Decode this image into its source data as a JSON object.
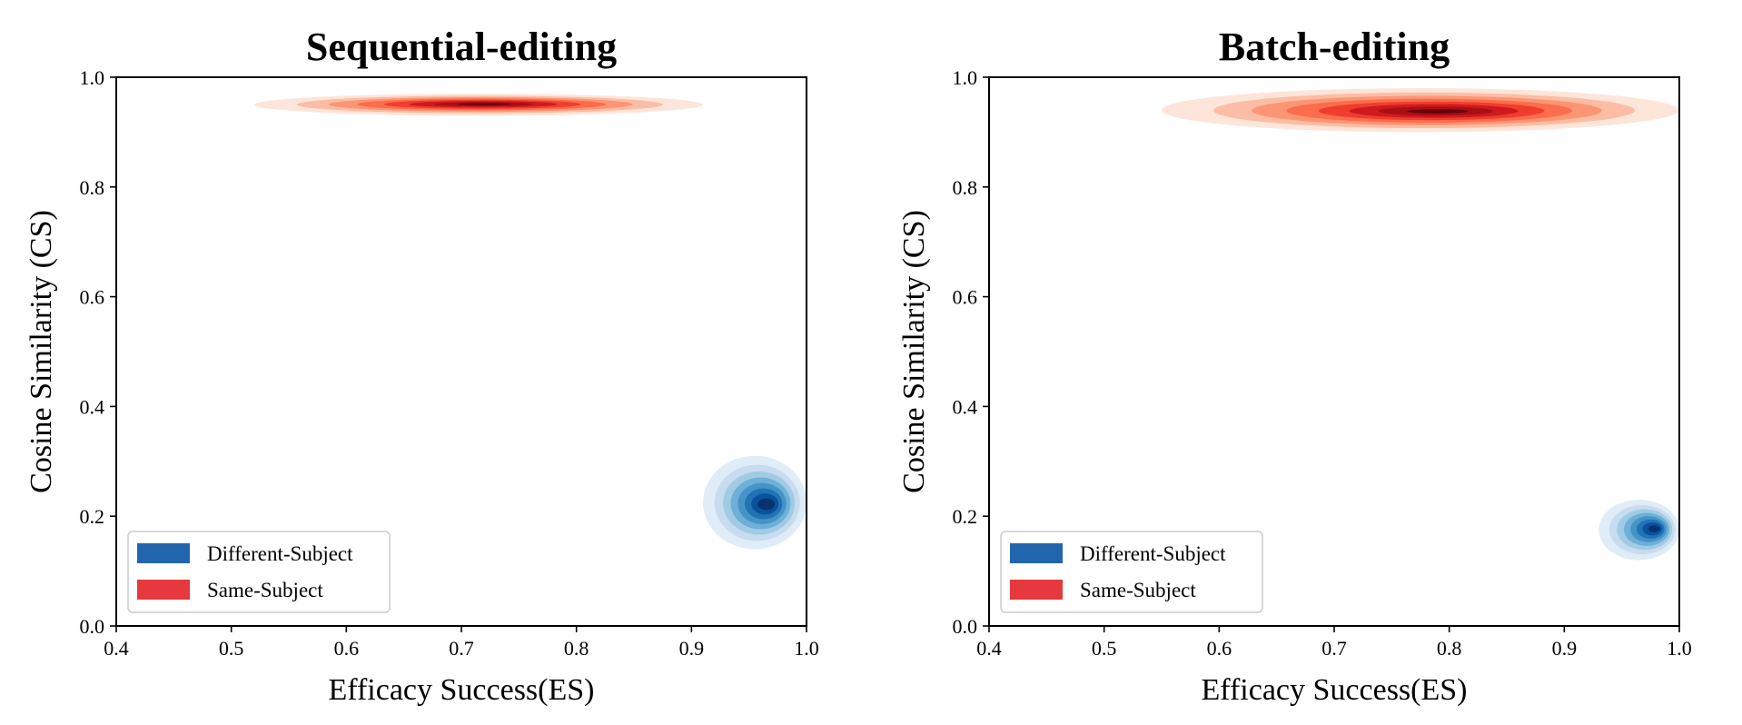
{
  "chart_data": [
    {
      "type": "kde",
      "title": "Sequential-editing",
      "xlabel": "Efficacy Success(ES)",
      "ylabel": "Cosine Similarity (CS)",
      "xlim": [
        0.4,
        1.0
      ],
      "ylim": [
        0.0,
        1.0
      ],
      "xticks": [
        "0.4",
        "0.5",
        "0.6",
        "0.7",
        "0.8",
        "0.9",
        "1.0"
      ],
      "yticks": [
        "0.0",
        "0.2",
        "0.4",
        "0.6",
        "0.8",
        "1.0"
      ],
      "grid": false,
      "legend_position": "lower-left",
      "series": [
        {
          "name": "Different-Subject",
          "color": "#2166ac",
          "palette": "Blues",
          "center": {
            "x": 0.965,
            "y": 0.222
          },
          "spread": {
            "x": 0.027,
            "y": 0.038
          },
          "extent": {
            "x": [
              0.91,
              1.0
            ],
            "y": [
              0.14,
              0.31
            ]
          }
        },
        {
          "name": "Same-Subject",
          "color": "#e6393e",
          "palette": "Reds",
          "center": {
            "x": 0.72,
            "y": 0.951
          },
          "spread": {
            "x": 0.085,
            "y": 0.006
          },
          "extent": {
            "x": [
              0.52,
              0.91
            ],
            "y": [
              0.93,
              0.97
            ]
          }
        }
      ]
    },
    {
      "type": "kde",
      "title": "Batch-editing",
      "xlabel": "Efficacy Success(ES)",
      "ylabel": "Cosine Similarity (CS)",
      "xlim": [
        0.4,
        1.0
      ],
      "ylim": [
        0.0,
        1.0
      ],
      "xticks": [
        "0.4",
        "0.5",
        "0.6",
        "0.7",
        "0.8",
        "0.9",
        "1.0"
      ],
      "yticks": [
        "0.0",
        "0.2",
        "0.4",
        "0.6",
        "0.8",
        "1.0"
      ],
      "grid": false,
      "legend_position": "lower-left",
      "series": [
        {
          "name": "Different-Subject",
          "color": "#2166ac",
          "palette": "Blues",
          "center": {
            "x": 0.978,
            "y": 0.177
          },
          "spread": {
            "x": 0.018,
            "y": 0.022
          },
          "extent": {
            "x": [
              0.93,
              1.0
            ],
            "y": [
              0.12,
              0.23
            ]
          }
        },
        {
          "name": "Same-Subject",
          "color": "#e6393e",
          "palette": "Reds",
          "center": {
            "x": 0.79,
            "y": 0.938
          },
          "spread": {
            "x": 0.095,
            "y": 0.014
          },
          "extent": {
            "x": [
              0.55,
              1.0
            ],
            "y": [
              0.9,
              0.98
            ]
          }
        }
      ]
    }
  ]
}
